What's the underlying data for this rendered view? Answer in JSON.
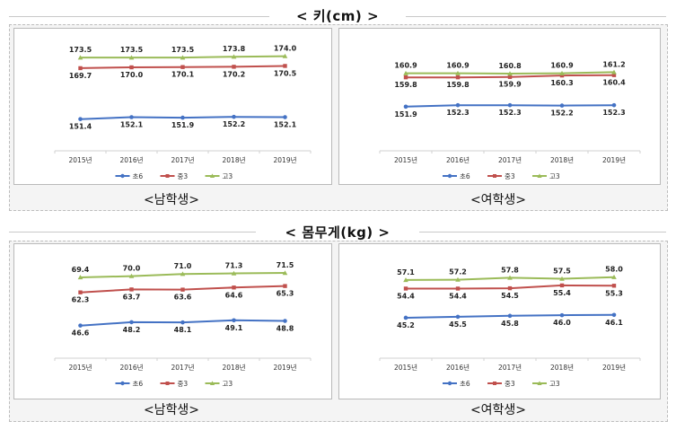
{
  "sections": [
    {
      "title": "<  키(cm)  >",
      "captions": [
        "<남학생>",
        "<여학생>"
      ]
    },
    {
      "title": "<  몸무게(kg)  >",
      "captions": [
        "<남학생>",
        "<여학생>"
      ]
    }
  ],
  "chart_data": [
    {
      "type": "line",
      "categories": [
        "2015년",
        "2016년",
        "2017년",
        "2018년",
        "2019년"
      ],
      "ylim": [
        140,
        180
      ],
      "legend": "bottom",
      "series": [
        {
          "name": "초6",
          "color": "#4472c4",
          "values": [
            151.4,
            152.1,
            151.9,
            152.2,
            152.1
          ]
        },
        {
          "name": "중3",
          "color": "#c0504d",
          "values": [
            169.7,
            170.0,
            170.1,
            170.2,
            170.5
          ]
        },
        {
          "name": "고3",
          "color": "#9bbb59",
          "values": [
            173.5,
            173.5,
            173.5,
            173.8,
            174.0
          ]
        }
      ]
    },
    {
      "type": "line",
      "categories": [
        "2015년",
        "2016년",
        "2017년",
        "2018년",
        "2019년"
      ],
      "ylim": [
        140,
        170
      ],
      "legend": "bottom",
      "series": [
        {
          "name": "초6",
          "color": "#4472c4",
          "values": [
            151.9,
            152.3,
            152.3,
            152.2,
            152.3
          ]
        },
        {
          "name": "중3",
          "color": "#c0504d",
          "values": [
            159.8,
            159.8,
            159.9,
            160.3,
            160.4
          ]
        },
        {
          "name": "고3",
          "color": "#9bbb59",
          "values": [
            160.9,
            160.9,
            160.8,
            160.9,
            161.2
          ]
        }
      ]
    },
    {
      "type": "line",
      "categories": [
        "2015년",
        "2016년",
        "2017년",
        "2018년",
        "2019년"
      ],
      "ylim": [
        35,
        80
      ],
      "legend": "bottom",
      "series": [
        {
          "name": "초6",
          "color": "#4472c4",
          "values": [
            46.6,
            48.2,
            48.1,
            49.1,
            48.8
          ]
        },
        {
          "name": "중3",
          "color": "#c0504d",
          "values": [
            62.3,
            63.7,
            63.6,
            64.6,
            65.3
          ]
        },
        {
          "name": "고3",
          "color": "#9bbb59",
          "values": [
            69.4,
            70.0,
            71.0,
            71.3,
            71.5
          ]
        }
      ]
    },
    {
      "type": "line",
      "categories": [
        "2015년",
        "2016년",
        "2017년",
        "2018년",
        "2019년"
      ],
      "ylim": [
        35,
        65
      ],
      "legend": "bottom",
      "series": [
        {
          "name": "초6",
          "color": "#4472c4",
          "values": [
            45.2,
            45.5,
            45.8,
            46.0,
            46.1
          ]
        },
        {
          "name": "중3",
          "color": "#c0504d",
          "values": [
            54.4,
            54.4,
            54.5,
            55.4,
            55.3
          ]
        },
        {
          "name": "고3",
          "color": "#9bbb59",
          "values": [
            57.1,
            57.2,
            57.8,
            57.5,
            58.0
          ]
        }
      ]
    }
  ]
}
